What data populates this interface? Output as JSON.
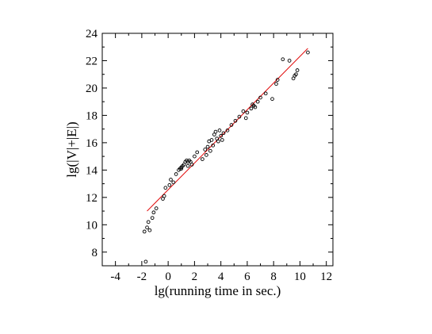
{
  "chart_data": {
    "type": "scatter",
    "xlabel": "lg(running time in sec.)",
    "ylabel": "lg(|V|+|E|)",
    "xlim": [
      -5,
      12.5
    ],
    "ylim": [
      7,
      24
    ],
    "xticks": [
      -4,
      -2,
      0,
      2,
      4,
      6,
      8,
      10,
      12
    ],
    "yticks": [
      8,
      10,
      12,
      14,
      16,
      18,
      20,
      22,
      24
    ],
    "grid": false,
    "marker_color": "#000000",
    "fit_line_color": "#e00000",
    "series": [
      {
        "kind": "points",
        "points": [
          [
            -1.7,
            7.3
          ],
          [
            -1.8,
            9.5
          ],
          [
            -1.6,
            9.8
          ],
          [
            -1.4,
            9.6
          ],
          [
            -1.5,
            10.2
          ],
          [
            -1.2,
            10.5
          ],
          [
            -1.1,
            10.9
          ],
          [
            -0.9,
            11.2
          ],
          [
            -0.4,
            11.9
          ],
          [
            -0.3,
            12.1
          ],
          [
            -0.2,
            12.7
          ],
          [
            0.1,
            12.9
          ],
          [
            0.2,
            13.3
          ],
          [
            0.4,
            13.1
          ],
          [
            0.6,
            13.7
          ],
          [
            0.8,
            14.0
          ],
          [
            0.9,
            14.1
          ],
          [
            1.0,
            14.2
          ],
          [
            1.1,
            14.3
          ],
          [
            1.2,
            14.4
          ],
          [
            1.3,
            14.6
          ],
          [
            1.4,
            14.7
          ],
          [
            1.5,
            14.6
          ],
          [
            1.6,
            14.7
          ],
          [
            1.7,
            14.6
          ],
          [
            1.0,
            14.1
          ],
          [
            1.5,
            14.3
          ],
          [
            1.8,
            14.4
          ],
          [
            2.0,
            15.0
          ],
          [
            2.2,
            15.3
          ],
          [
            2.6,
            14.8
          ],
          [
            2.8,
            15.5
          ],
          [
            3.0,
            15.7
          ],
          [
            3.1,
            16.1
          ],
          [
            3.3,
            16.2
          ],
          [
            3.4,
            15.8
          ],
          [
            3.5,
            16.6
          ],
          [
            3.6,
            16.8
          ],
          [
            3.7,
            16.3
          ],
          [
            3.8,
            16.1
          ],
          [
            3.9,
            16.9
          ],
          [
            4.0,
            16.5
          ],
          [
            4.2,
            16.7
          ],
          [
            4.5,
            16.9
          ],
          [
            4.8,
            17.3
          ],
          [
            5.1,
            17.6
          ],
          [
            5.4,
            17.9
          ],
          [
            5.7,
            18.3
          ],
          [
            6.0,
            18.2
          ],
          [
            6.3,
            18.5
          ],
          [
            6.5,
            18.7
          ],
          [
            6.6,
            18.6
          ],
          [
            6.8,
            19.0
          ],
          [
            7.0,
            19.3
          ],
          [
            7.4,
            19.6
          ],
          [
            7.9,
            19.2
          ],
          [
            8.2,
            20.3
          ],
          [
            8.3,
            20.6
          ],
          [
            8.7,
            22.1
          ],
          [
            9.2,
            22.0
          ],
          [
            9.5,
            20.7
          ],
          [
            9.6,
            20.9
          ],
          [
            9.7,
            21.0
          ],
          [
            9.8,
            21.3
          ],
          [
            10.6,
            22.6
          ],
          [
            2.9,
            15.1
          ],
          [
            3.2,
            15.4
          ],
          [
            5.9,
            17.8
          ],
          [
            6.4,
            18.8
          ],
          [
            4.1,
            16.2
          ]
        ]
      },
      {
        "kind": "fit-line",
        "x": [
          -1.6,
          10.6
        ],
        "y": [
          11.0,
          22.9
        ]
      }
    ]
  }
}
